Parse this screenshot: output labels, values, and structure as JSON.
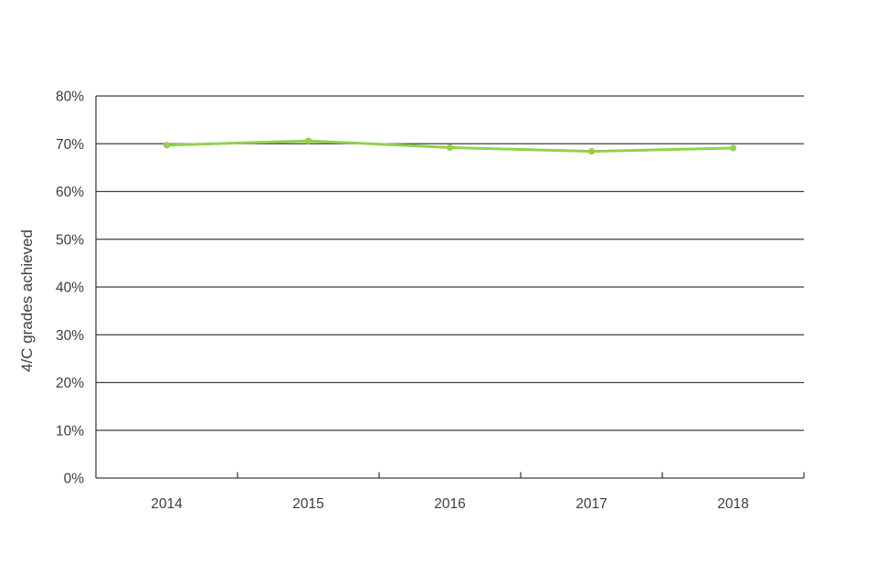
{
  "chart_data": {
    "type": "line",
    "categories": [
      "2014",
      "2015",
      "2016",
      "2017",
      "2018"
    ],
    "series": [
      {
        "name": "4/C grades achieved",
        "values": [
          69.7,
          70.6,
          69.2,
          68.4,
          69.1
        ],
        "color": "#92d050",
        "marker": "circle"
      }
    ],
    "title": "",
    "xlabel": "",
    "ylabel": "4/C grades achieved",
    "ylim": [
      0,
      80
    ],
    "y_tick_step": 10,
    "y_tick_labels": [
      "0%",
      "10%",
      "20%",
      "30%",
      "40%",
      "50%",
      "60%",
      "70%",
      "80%"
    ],
    "grid": true,
    "legend_position": "none"
  },
  "colors": {
    "axis": "#3f3f3f",
    "gridline": "#3f3f3f",
    "tick_text": "#3d3d3d",
    "series_green": "#92d050",
    "background": "#ffffff"
  }
}
